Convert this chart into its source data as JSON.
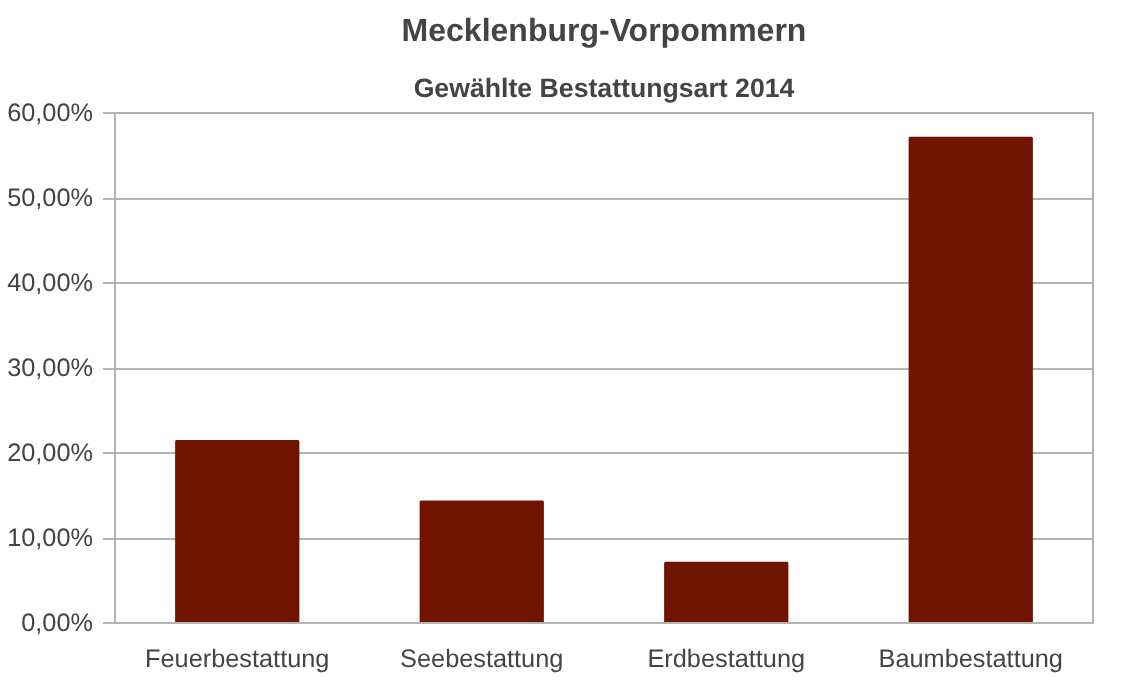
{
  "chart_data": {
    "type": "bar",
    "title": "Mecklenburg-Vorpommern",
    "subtitle": "Gewählte Bestattungsart 2014",
    "categories": [
      "Feuerbestattung",
      "Seebestattung",
      "Erdbestattung",
      "Baumbestattung"
    ],
    "values": [
      21.4,
      14.3,
      7.1,
      57.1
    ],
    "color": "#701400",
    "ylim": [
      0,
      60
    ],
    "yticks": [
      {
        "value": 0,
        "label": "0,00%"
      },
      {
        "value": 10,
        "label": "10,00%"
      },
      {
        "value": 20,
        "label": "20,00%"
      },
      {
        "value": 30,
        "label": "30,00%"
      },
      {
        "value": 40,
        "label": "40,00%"
      },
      {
        "value": 50,
        "label": "50,00%"
      },
      {
        "value": 60,
        "label": "60,00%"
      }
    ],
    "grid": "y"
  }
}
